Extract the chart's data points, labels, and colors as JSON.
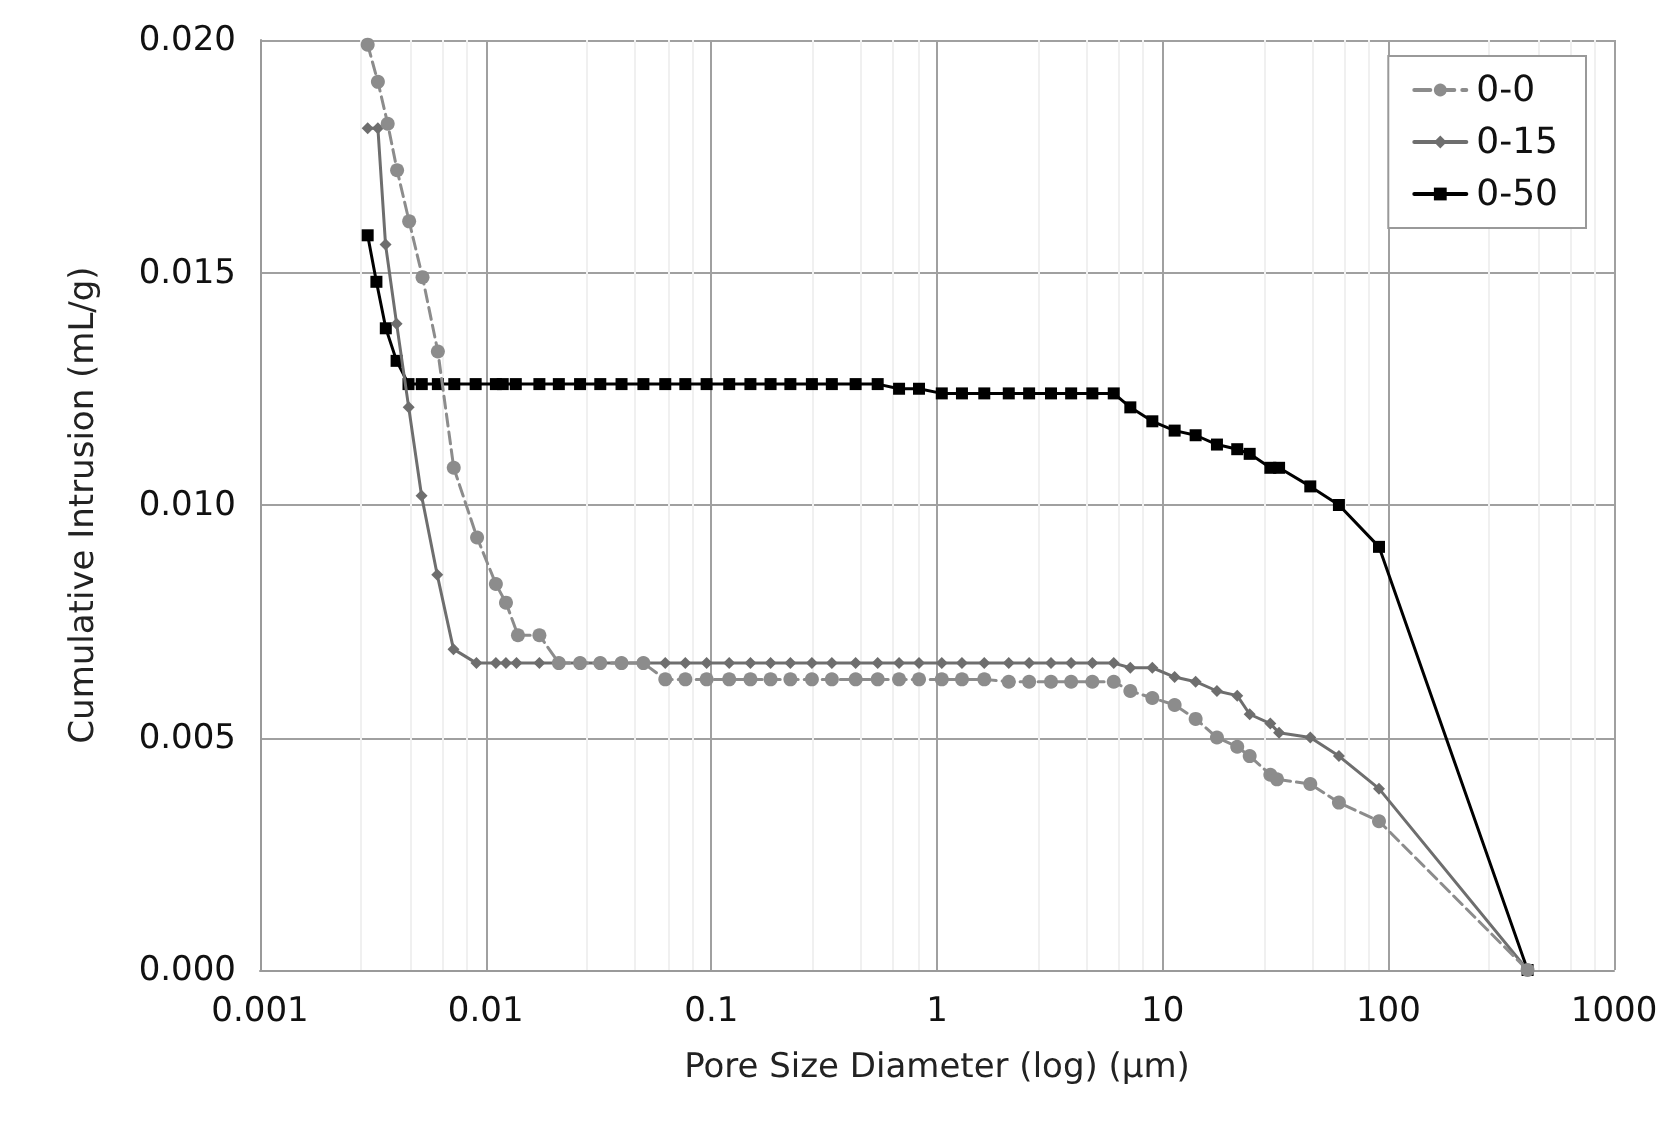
{
  "chart_data": {
    "type": "line",
    "xlabel": "Pore Size Diameter (log) (µm)",
    "ylabel": "Cumulative Intrusion (mL/g)",
    "log": "x",
    "grid": true,
    "legend": "top right",
    "xlim": [
      0.001,
      1000
    ],
    "xticks": [
      0.001,
      0.01,
      0.1,
      1,
      10,
      100,
      1000
    ],
    "ylim": [
      0,
      0.02
    ],
    "yticks": [
      {
        "value": 0,
        "label": "0.000"
      },
      {
        "value": 0.005,
        "label": "0.005"
      },
      {
        "value": 0.01,
        "label": "0.010"
      },
      {
        "value": 0.015,
        "label": "0.015"
      },
      {
        "value": 0.02,
        "label": "0.020"
      }
    ],
    "series": [
      {
        "name": "0-0",
        "color": "#8c8c8c",
        "marker": "circle",
        "line_style": "dashed",
        "x": [
          0.003,
          0.00333,
          0.00368,
          0.00405,
          0.00458,
          0.00525,
          0.00614,
          0.00722,
          0.00916,
          0.0111,
          0.0123,
          0.0139,
          0.0173,
          0.0211,
          0.0262,
          0.0322,
          0.04,
          0.05,
          0.0625,
          0.0767,
          0.0953,
          0.12,
          0.149,
          0.183,
          0.224,
          0.279,
          0.342,
          0.436,
          0.546,
          0.679,
          0.832,
          1.05,
          1.29,
          1.62,
          2.08,
          2.56,
          3.2,
          3.93,
          4.88,
          6.07,
          7.19,
          9.0,
          11.3,
          14.0,
          17.4,
          21.4,
          24.3,
          30.0,
          32.1,
          45.1,
          60.4,
          90.9,
          414
        ],
        "values": [
          0.0199,
          0.0191,
          0.0182,
          0.0172,
          0.0161,
          0.0149,
          0.0133,
          0.0108,
          0.0093,
          0.0083,
          0.0079,
          0.0072,
          0.0072,
          0.0066,
          0.0066,
          0.0066,
          0.0066,
          0.0066,
          0.00625,
          0.00625,
          0.00625,
          0.00625,
          0.00625,
          0.00625,
          0.00625,
          0.00625,
          0.00625,
          0.00625,
          0.00625,
          0.00625,
          0.00625,
          0.00625,
          0.00625,
          0.00625,
          0.0062,
          0.0062,
          0.0062,
          0.0062,
          0.0062,
          0.0062,
          0.006,
          0.00585,
          0.0057,
          0.0054,
          0.005,
          0.0048,
          0.0046,
          0.0042,
          0.0041,
          0.004,
          0.0036,
          0.0032,
          0
        ]
      },
      {
        "name": "0-15",
        "color": "#6e6e6e",
        "marker": "diamond",
        "line_style": "solid",
        "x": [
          0.003,
          0.00333,
          0.0036,
          0.00403,
          0.00456,
          0.0052,
          0.0061,
          0.0072,
          0.0091,
          0.0111,
          0.0123,
          0.0137,
          0.0173,
          0.0211,
          0.0262,
          0.0322,
          0.04,
          0.05,
          0.0625,
          0.0767,
          0.0953,
          0.12,
          0.149,
          0.183,
          0.224,
          0.279,
          0.342,
          0.436,
          0.546,
          0.679,
          0.832,
          1.05,
          1.29,
          1.62,
          2.08,
          2.56,
          3.2,
          3.93,
          4.88,
          6.07,
          7.19,
          9.0,
          11.3,
          14.0,
          17.4,
          21.4,
          24.3,
          30.0,
          32.8,
          45.1,
          60.4,
          90.9,
          414
        ],
        "values": [
          0.0181,
          0.0181,
          0.0156,
          0.0139,
          0.0121,
          0.0102,
          0.0085,
          0.0069,
          0.0066,
          0.0066,
          0.0066,
          0.0066,
          0.0066,
          0.0066,
          0.0066,
          0.0066,
          0.0066,
          0.0066,
          0.0066,
          0.0066,
          0.0066,
          0.0066,
          0.0066,
          0.0066,
          0.0066,
          0.0066,
          0.0066,
          0.0066,
          0.0066,
          0.0066,
          0.0066,
          0.0066,
          0.0066,
          0.0066,
          0.0066,
          0.0066,
          0.0066,
          0.0066,
          0.0066,
          0.0066,
          0.0065,
          0.0065,
          0.0063,
          0.0062,
          0.006,
          0.0059,
          0.0055,
          0.0053,
          0.0051,
          0.005,
          0.0046,
          0.0039,
          0
        ]
      },
      {
        "name": "0-50",
        "color": "#000000",
        "marker": "square",
        "line_style": "solid",
        "x": [
          0.003,
          0.00328,
          0.00361,
          0.00403,
          0.00455,
          0.00521,
          0.00614,
          0.00726,
          0.00903,
          0.0111,
          0.0119,
          0.0136,
          0.0173,
          0.0211,
          0.0262,
          0.0322,
          0.04,
          0.05,
          0.0625,
          0.0767,
          0.0953,
          0.12,
          0.149,
          0.183,
          0.224,
          0.279,
          0.342,
          0.436,
          0.546,
          0.679,
          0.832,
          1.05,
          1.29,
          1.62,
          2.08,
          2.56,
          3.2,
          3.93,
          4.88,
          6.07,
          7.19,
          9.0,
          11.3,
          14.0,
          17.4,
          21.4,
          24.3,
          30.0,
          32.8,
          45.1,
          60.4,
          90.9,
          414
        ],
        "values": [
          0.0158,
          0.0148,
          0.0138,
          0.0131,
          0.0126,
          0.0126,
          0.0126,
          0.0126,
          0.0126,
          0.0126,
          0.0126,
          0.0126,
          0.0126,
          0.0126,
          0.0126,
          0.0126,
          0.0126,
          0.0126,
          0.0126,
          0.0126,
          0.0126,
          0.0126,
          0.0126,
          0.0126,
          0.0126,
          0.0126,
          0.0126,
          0.0126,
          0.0126,
          0.0125,
          0.0125,
          0.0124,
          0.0124,
          0.0124,
          0.0124,
          0.0124,
          0.0124,
          0.0124,
          0.0124,
          0.0124,
          0.0121,
          0.0118,
          0.0116,
          0.0115,
          0.0113,
          0.0112,
          0.0111,
          0.0108,
          0.0108,
          0.0104,
          0.01,
          0.0091,
          0
        ]
      }
    ]
  }
}
